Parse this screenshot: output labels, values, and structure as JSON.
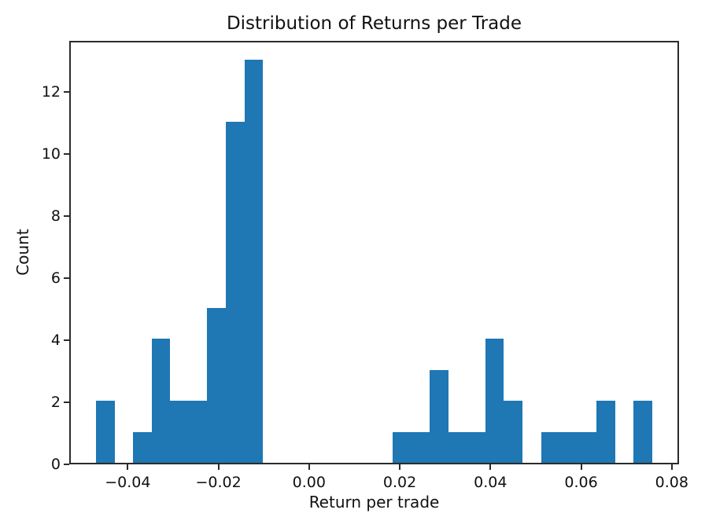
{
  "chart_data": {
    "type": "bar",
    "subtype": "histogram",
    "title": "Distribution of Returns per Trade",
    "xlabel": "Return per trade",
    "ylabel": "Count",
    "bar_color": "#1f77b4",
    "axis_color": "#2b2b2b",
    "text_color": "#111111",
    "background_color": "#ffffff",
    "bin_start": -0.047,
    "bin_width": 0.00409,
    "counts": [
      2,
      0,
      1,
      4,
      2,
      2,
      5,
      11,
      13,
      0,
      0,
      0,
      0,
      0,
      0,
      0,
      1,
      1,
      3,
      1,
      1,
      4,
      2,
      0,
      1,
      1,
      1,
      2,
      0,
      2
    ],
    "xlim": [
      -0.0529,
      0.0816
    ],
    "ylim": [
      0,
      13.65
    ],
    "x_ticks": [
      -0.04,
      -0.02,
      0.0,
      0.02,
      0.04,
      0.06,
      0.08
    ],
    "x_tick_labels": [
      "−0.04",
      "−0.02",
      "0.00",
      "0.02",
      "0.04",
      "0.06",
      "0.08"
    ],
    "y_ticks": [
      0,
      2,
      4,
      6,
      8,
      10,
      12
    ],
    "y_tick_labels": [
      "0",
      "2",
      "4",
      "6",
      "8",
      "10",
      "12"
    ],
    "grid": false,
    "legend": null
  }
}
